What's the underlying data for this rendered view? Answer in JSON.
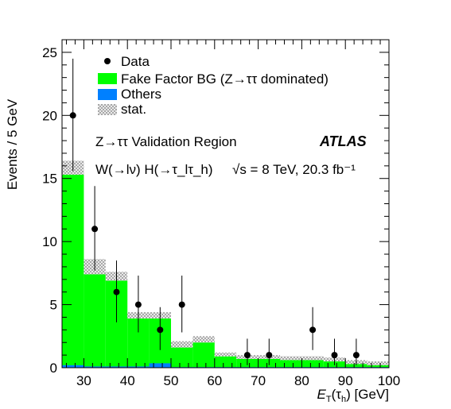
{
  "chart_data": {
    "type": "bar",
    "xlabel": "E_T(τ_h) [GeV]",
    "xlabel_main": "E",
    "xlabel_sub": "T",
    "xlabel_paren_open": "(τ",
    "xlabel_sub2": "h",
    "xlabel_tail": ") [GeV]",
    "ylabel": "Events / 5 GeV",
    "xlim": [
      25,
      100
    ],
    "ylim": [
      0,
      26
    ],
    "xticks": [
      30,
      40,
      50,
      60,
      70,
      80,
      90,
      100
    ],
    "yticks": [
      0,
      5,
      10,
      15,
      20,
      25
    ],
    "bin_width": 5,
    "bin_low_edges": [
      25,
      30,
      35,
      40,
      45,
      50,
      55,
      60,
      65,
      70,
      75,
      80,
      85,
      90,
      95
    ],
    "series": [
      {
        "name": "Fake Factor BG (Z→ττ dominated)",
        "color": "#00ff00",
        "values": [
          15.0,
          7.3,
          6.8,
          3.8,
          3.6,
          1.6,
          2.0,
          0.9,
          0.7,
          0.7,
          0.6,
          0.6,
          0.5,
          0.3,
          0.2
        ]
      },
      {
        "name": "Others",
        "color": "#0080ff",
        "values": [
          0.2,
          0.1,
          0.1,
          0.1,
          0.35,
          0.05,
          0.05,
          0.05,
          0.05,
          0.05,
          0.05,
          0.05,
          0.05,
          0.05,
          0.05
        ]
      }
    ],
    "stat_band": {
      "name": "stat.",
      "low": [
        15.3,
        7.4,
        6.9,
        3.9,
        3.9,
        1.6,
        2.0,
        0.9,
        0.7,
        0.7,
        0.6,
        0.6,
        0.5,
        0.3,
        0.2
      ],
      "high": [
        16.4,
        8.6,
        7.6,
        4.4,
        4.4,
        2.1,
        2.5,
        1.2,
        1.0,
        1.0,
        0.9,
        0.9,
        0.8,
        0.6,
        0.5
      ]
    },
    "data": {
      "name": "Data",
      "x": [
        27.5,
        32.5,
        37.5,
        42.5,
        47.5,
        52.5,
        67.5,
        72.5,
        82.5,
        87.5,
        92.5
      ],
      "y": [
        20,
        11,
        6,
        5,
        3,
        5,
        1,
        1,
        3,
        1,
        1
      ],
      "err_low": [
        4.4,
        3.3,
        2.4,
        2.2,
        1.6,
        2.2,
        0.8,
        0.8,
        1.6,
        0.8,
        0.8
      ],
      "err_high": [
        4.5,
        3.4,
        2.5,
        2.3,
        1.8,
        2.3,
        1.3,
        1.3,
        1.8,
        1.3,
        1.3
      ]
    },
    "legend": {
      "data_label": "Data",
      "fake_label": "Fake Factor BG (Z→ττ dominated)",
      "others_label": "Others",
      "stat_label": "stat."
    },
    "annotations": {
      "region": "Z→ττ Validation Region",
      "atlas": "ATLAS",
      "process": "W(→lν) H(→τ_lτ_h)",
      "energy": "√s = 8 TeV, 20.3 fb⁻¹"
    }
  }
}
